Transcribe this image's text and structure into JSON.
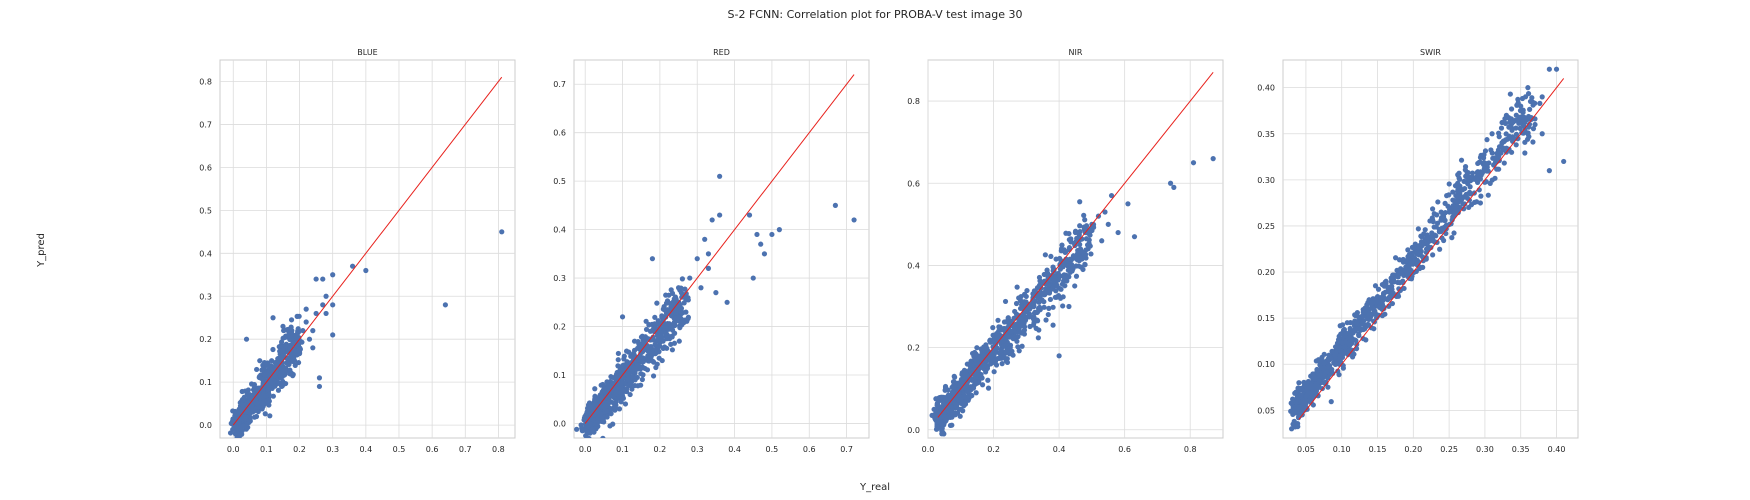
{
  "figure": {
    "title": "S-2 FCNN: Correlation plot for PROBA-V test image 30",
    "xlabel": "Y_real",
    "ylabel": "Y_pred",
    "point_color": "#4c72b0",
    "line_color": "#e8211c",
    "grid_color": "#dcdcdc",
    "frame_color": "#cccccc"
  },
  "chart_data": [
    {
      "type": "scatter",
      "title": "BLUE",
      "xlim": [
        -0.04,
        0.85
      ],
      "ylim": [
        -0.03,
        0.85
      ],
      "xticks": [
        0.0,
        0.1,
        0.2,
        0.3,
        0.4,
        0.5,
        0.6,
        0.7,
        0.8
      ],
      "xtick_labels": [
        "0.0",
        "0.1",
        "0.2",
        "0.3",
        "0.4",
        "0.5",
        "0.6",
        "0.7",
        "0.8"
      ],
      "yticks": [
        0.0,
        0.1,
        0.2,
        0.3,
        0.4,
        0.5,
        0.6,
        0.7,
        0.8
      ],
      "ytick_labels": [
        "0.0",
        "0.1",
        "0.2",
        "0.3",
        "0.4",
        "0.5",
        "0.6",
        "0.7",
        "0.8"
      ],
      "identity_line": [
        0.0,
        0.81
      ],
      "cloud": {
        "x0": 0.01,
        "x1": 0.2,
        "y0": 0.0,
        "y1": 0.2,
        "spread": 0.025,
        "count": 650
      },
      "points": [
        [
          0.04,
          0.2
        ],
        [
          0.08,
          0.15
        ],
        [
          0.12,
          0.25
        ],
        [
          0.15,
          0.23
        ],
        [
          0.22,
          0.27
        ],
        [
          0.25,
          0.34
        ],
        [
          0.27,
          0.34
        ],
        [
          0.27,
          0.28
        ],
        [
          0.3,
          0.35
        ],
        [
          0.28,
          0.3
        ],
        [
          0.3,
          0.28
        ],
        [
          0.36,
          0.37
        ],
        [
          0.4,
          0.36
        ],
        [
          0.3,
          0.21
        ],
        [
          0.24,
          0.22
        ],
        [
          0.26,
          0.11
        ],
        [
          0.26,
          0.09
        ],
        [
          0.2,
          0.17
        ],
        [
          0.23,
          0.2
        ],
        [
          0.64,
          0.28
        ],
        [
          0.81,
          0.45
        ],
        [
          0.18,
          0.19
        ],
        [
          0.25,
          0.26
        ],
        [
          0.21,
          0.22
        ],
        [
          0.28,
          0.26
        ],
        [
          0.22,
          0.24
        ],
        [
          0.19,
          0.21
        ],
        [
          0.24,
          0.18
        ]
      ]
    },
    {
      "type": "scatter",
      "title": "RED",
      "xlim": [
        -0.03,
        0.76
      ],
      "ylim": [
        -0.03,
        0.75
      ],
      "xticks": [
        0.0,
        0.1,
        0.2,
        0.3,
        0.4,
        0.5,
        0.6,
        0.7
      ],
      "xtick_labels": [
        "0.0",
        "0.1",
        "0.2",
        "0.3",
        "0.4",
        "0.5",
        "0.6",
        "0.7"
      ],
      "yticks": [
        0.0,
        0.1,
        0.2,
        0.3,
        0.4,
        0.5,
        0.6,
        0.7
      ],
      "ytick_labels": [
        "0.0",
        "0.1",
        "0.2",
        "0.3",
        "0.4",
        "0.5",
        "0.6",
        "0.7"
      ],
      "identity_line": [
        0.0,
        0.72
      ],
      "cloud": {
        "x0": 0.005,
        "x1": 0.27,
        "y0": 0.0,
        "y1": 0.25,
        "spread": 0.025,
        "count": 800
      },
      "points": [
        [
          0.1,
          0.22
        ],
        [
          0.18,
          0.34
        ],
        [
          0.25,
          0.28
        ],
        [
          0.3,
          0.34
        ],
        [
          0.33,
          0.32
        ],
        [
          0.32,
          0.38
        ],
        [
          0.34,
          0.42
        ],
        [
          0.36,
          0.43
        ],
        [
          0.36,
          0.51
        ],
        [
          0.44,
          0.43
        ],
        [
          0.46,
          0.39
        ],
        [
          0.5,
          0.39
        ],
        [
          0.52,
          0.4
        ],
        [
          0.47,
          0.37
        ],
        [
          0.45,
          0.3
        ],
        [
          0.48,
          0.35
        ],
        [
          0.38,
          0.25
        ],
        [
          0.35,
          0.27
        ],
        [
          0.67,
          0.45
        ],
        [
          0.72,
          0.42
        ],
        [
          0.28,
          0.3
        ],
        [
          0.31,
          0.28
        ],
        [
          0.33,
          0.35
        ]
      ]
    },
    {
      "type": "scatter",
      "title": "NIR",
      "xlim": [
        0.0,
        0.9
      ],
      "ylim": [
        -0.02,
        0.9
      ],
      "xticks": [
        0.0,
        0.2,
        0.4,
        0.6,
        0.8
      ],
      "xtick_labels": [
        "0.0",
        "0.2",
        "0.4",
        "0.6",
        "0.8"
      ],
      "yticks": [
        0.0,
        0.2,
        0.4,
        0.6,
        0.8
      ],
      "ytick_labels": [
        "0.0",
        "0.2",
        "0.4",
        "0.6",
        "0.8"
      ],
      "identity_line": [
        0.03,
        0.87
      ],
      "cloud": {
        "x0": 0.03,
        "x1": 0.5,
        "y0": 0.03,
        "y1": 0.47,
        "spread": 0.03,
        "count": 900
      },
      "points": [
        [
          0.52,
          0.52
        ],
        [
          0.55,
          0.5
        ],
        [
          0.56,
          0.57
        ],
        [
          0.58,
          0.48
        ],
        [
          0.61,
          0.55
        ],
        [
          0.63,
          0.47
        ],
        [
          0.48,
          0.48
        ],
        [
          0.74,
          0.6
        ],
        [
          0.75,
          0.59
        ],
        [
          0.81,
          0.65
        ],
        [
          0.87,
          0.66
        ],
        [
          0.4,
          0.18
        ],
        [
          0.43,
          0.3
        ],
        [
          0.5,
          0.5
        ],
        [
          0.53,
          0.46
        ],
        [
          0.1,
          0.05
        ],
        [
          0.12,
          0.16
        ],
        [
          0.08,
          0.13
        ],
        [
          0.54,
          0.53
        ]
      ]
    },
    {
      "type": "scatter",
      "title": "SWIR",
      "xlim": [
        0.018,
        0.43
      ],
      "ylim": [
        0.02,
        0.43
      ],
      "xticks": [
        0.05,
        0.1,
        0.15,
        0.2,
        0.25,
        0.3,
        0.35,
        0.4
      ],
      "xtick_labels": [
        "0.05",
        "0.10",
        "0.15",
        "0.20",
        "0.25",
        "0.30",
        "0.35",
        "0.40"
      ],
      "yticks": [
        0.05,
        0.1,
        0.15,
        0.2,
        0.25,
        0.3,
        0.35,
        0.4
      ],
      "ytick_labels": [
        "0.05",
        "0.10",
        "0.15",
        "0.20",
        "0.25",
        "0.30",
        "0.35",
        "0.40"
      ],
      "identity_line": [
        0.04,
        0.41
      ],
      "cloud": {
        "x0": 0.035,
        "x1": 0.37,
        "y0": 0.04,
        "y1": 0.37,
        "spread": 0.012,
        "offset": 0.012,
        "count": 1000
      },
      "points": [
        [
          0.03,
          0.03
        ],
        [
          0.032,
          0.035
        ],
        [
          0.035,
          0.032
        ],
        [
          0.33,
          0.37
        ],
        [
          0.35,
          0.38
        ],
        [
          0.36,
          0.4
        ],
        [
          0.38,
          0.39
        ],
        [
          0.39,
          0.42
        ],
        [
          0.4,
          0.42
        ],
        [
          0.37,
          0.36
        ],
        [
          0.38,
          0.35
        ],
        [
          0.39,
          0.31
        ],
        [
          0.41,
          0.32
        ],
        [
          0.33,
          0.33
        ],
        [
          0.31,
          0.35
        ],
        [
          0.36,
          0.35
        ]
      ]
    }
  ]
}
